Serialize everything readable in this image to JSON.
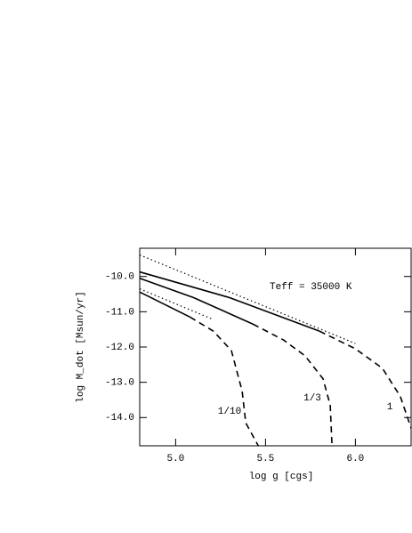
{
  "chart_data": {
    "type": "line",
    "xlabel": "log g [cgs]",
    "ylabel": "log M_dot [Msun/yr]",
    "xlim": [
      4.8,
      6.31
    ],
    "ylim": [
      -14.8,
      -9.2
    ],
    "xticks": [
      {
        "value": 5.0,
        "label": "5.0"
      },
      {
        "value": 5.5,
        "label": "5.5"
      },
      {
        "value": 6.0,
        "label": "6.0"
      }
    ],
    "yticks": [
      {
        "value": -14.0,
        "label": "-14.0"
      },
      {
        "value": -13.0,
        "label": "-13.0"
      },
      {
        "value": -12.0,
        "label": "-12.0"
      },
      {
        "value": -11.0,
        "label": "-11.0"
      },
      {
        "value": -10.0,
        "label": "-10.0"
      }
    ],
    "series": [
      {
        "dash": "dotted",
        "color": "#000000",
        "x": [
          4.8,
          6.0
        ],
        "values": [
          -9.39,
          -11.9
        ]
      },
      {
        "dash": "dotted",
        "color": "#000000",
        "x": [
          4.8,
          5.2
        ],
        "values": [
          -10.35,
          -11.2
        ]
      },
      {
        "dash": "solid",
        "color": "#000000",
        "x": [
          4.8,
          5.3,
          5.8
        ],
        "values": [
          -9.87,
          -10.6,
          -11.55
        ]
      },
      {
        "dash": "dashed",
        "color": "#000000",
        "x": [
          5.8,
          6.0,
          6.15,
          6.25,
          6.31
        ],
        "values": [
          -11.55,
          -12.05,
          -12.6,
          -13.4,
          -14.3
        ]
      },
      {
        "dash": "solid",
        "color": "#000000",
        "x": [
          4.8,
          5.1,
          5.43
        ],
        "values": [
          -10.05,
          -10.6,
          -11.35
        ]
      },
      {
        "dash": "dashed",
        "color": "#000000",
        "x": [
          5.43,
          5.6,
          5.72,
          5.82,
          5.86,
          5.87
        ],
        "values": [
          -11.35,
          -11.8,
          -12.25,
          -12.9,
          -13.65,
          -14.8
        ]
      },
      {
        "dash": "solid",
        "color": "#000000",
        "x": [
          4.8,
          5.08
        ],
        "values": [
          -10.44,
          -11.15
        ]
      },
      {
        "dash": "dashed",
        "color": "#000000",
        "x": [
          5.08,
          5.21,
          5.31,
          5.37,
          5.39,
          5.46
        ],
        "values": [
          -11.15,
          -11.55,
          -12.1,
          -13.25,
          -14.15,
          -14.8
        ]
      }
    ],
    "annotations": [
      "Teff = 35000 K",
      "1/10",
      "1/3",
      "1"
    ]
  }
}
